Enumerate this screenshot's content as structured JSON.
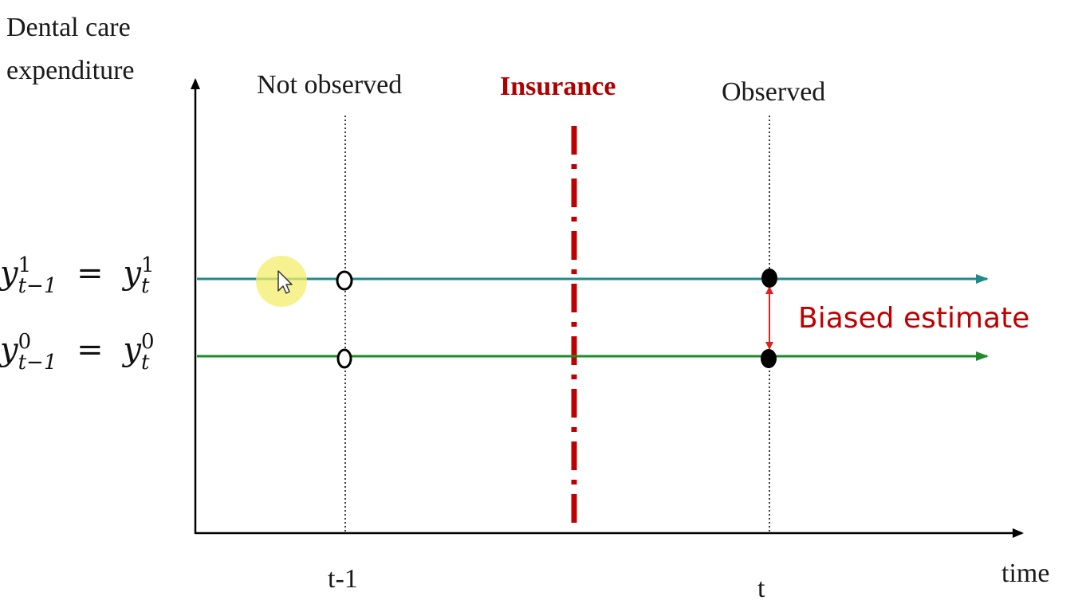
{
  "diagram": {
    "y_axis_label_line1": "Dental care",
    "y_axis_label_line2": "expenditure",
    "x_axis_label": "time",
    "periods": [
      {
        "label": "t-1",
        "header": "Not observed"
      },
      {
        "label": "t",
        "header": "Observed"
      }
    ],
    "event_label": "Insurance",
    "bias_label": "Biased estimate",
    "equations": [
      {
        "lhs_base": "y",
        "lhs_sup": "1",
        "lhs_sub": "t−1",
        "op": "=",
        "rhs_base": "y",
        "rhs_sup": "1",
        "rhs_sub": "t"
      },
      {
        "lhs_base": "y",
        "lhs_sup": "0",
        "lhs_sub": "t−1",
        "op": "=",
        "rhs_base": "y",
        "rhs_sup": "0",
        "rhs_sub": "t"
      }
    ],
    "colors": {
      "treated_line": "#1f8a8a",
      "control_line": "#1f8a2a",
      "event_line": "#c00000",
      "bias_arrow": "#e0201c",
      "event_text": "#b00000",
      "bias_text": "#c00000",
      "axis": "#000000"
    }
  }
}
